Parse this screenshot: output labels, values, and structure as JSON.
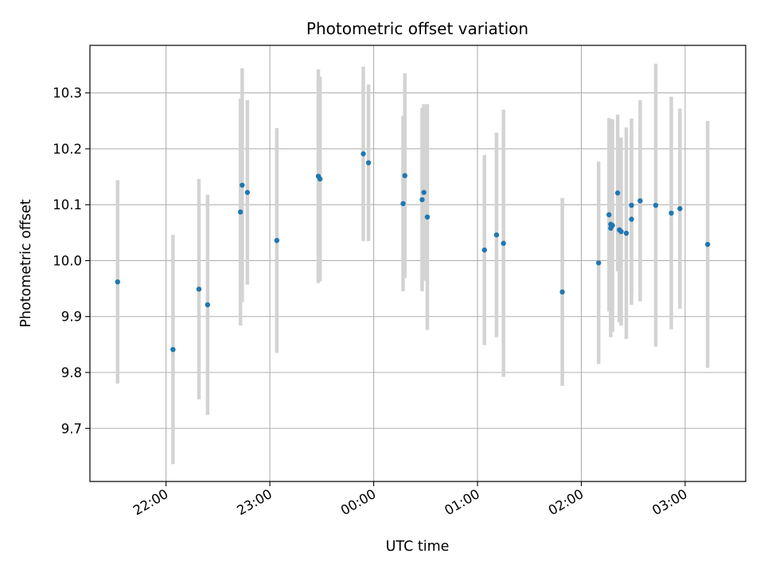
{
  "chart_data": {
    "type": "scatter",
    "title": "Photometric offset variation",
    "xlabel": "UTC time",
    "ylabel": "Photometric offset",
    "x_is_time": true,
    "xlim": [
      "21:16",
      "03:35"
    ],
    "ylim": [
      9.605,
      10.385
    ],
    "x_ticks": [
      "22:00",
      "23:00",
      "00:00",
      "01:00",
      "02:00",
      "03:00"
    ],
    "y_ticks": [
      9.7,
      9.8,
      9.9,
      10.0,
      10.1,
      10.2,
      10.3
    ],
    "grid": true,
    "colors": {
      "point": "#1f77b4",
      "errorbar": "#d3d3d3",
      "grid": "#b0b0b0"
    },
    "series": [
      {
        "points": [
          {
            "x": "21:32",
            "y": 9.962,
            "err": 0.182
          },
          {
            "x": "22:04",
            "y": 9.841,
            "err": 0.205
          },
          {
            "x": "22:19",
            "y": 9.949,
            "err": 0.197
          },
          {
            "x": "22:24",
            "y": 9.921,
            "err": 0.197
          },
          {
            "x": "22:43",
            "y": 10.087,
            "err": 0.203
          },
          {
            "x": "22:44",
            "y": 10.135,
            "err": 0.209
          },
          {
            "x": "22:47",
            "y": 10.122,
            "err": 0.165
          },
          {
            "x": "23:04",
            "y": 10.036,
            "err": 0.201
          },
          {
            "x": "23:28",
            "y": 10.151,
            "err": 0.191
          },
          {
            "x": "23:29",
            "y": 10.146,
            "err": 0.183
          },
          {
            "x": "23:54",
            "y": 10.191,
            "err": 0.156
          },
          {
            "x": "23:57",
            "y": 10.175,
            "err": 0.14
          },
          {
            "x": "00:17",
            "y": 10.102,
            "err": 0.157
          },
          {
            "x": "00:18",
            "y": 10.152,
            "err": 0.183
          },
          {
            "x": "00:28",
            "y": 10.109,
            "err": 0.164
          },
          {
            "x": "00:29",
            "y": 10.122,
            "err": 0.158
          },
          {
            "x": "00:31",
            "y": 10.078,
            "err": 0.202
          },
          {
            "x": "01:04",
            "y": 10.019,
            "err": 0.17
          },
          {
            "x": "01:11",
            "y": 10.046,
            "err": 0.183
          },
          {
            "x": "01:15",
            "y": 10.031,
            "err": 0.239
          },
          {
            "x": "01:49",
            "y": 9.944,
            "err": 0.168
          },
          {
            "x": "02:10",
            "y": 9.996,
            "err": 0.181
          },
          {
            "x": "02:16",
            "y": 10.082,
            "err": 0.173
          },
          {
            "x": "02:17",
            "y": 10.065,
            "err": 0.187
          },
          {
            "x": "02:17",
            "y": 10.058,
            "err": 0.195
          },
          {
            "x": "02:18",
            "y": 10.063,
            "err": 0.19
          },
          {
            "x": "02:21",
            "y": 10.121,
            "err": 0.14
          },
          {
            "x": "02:22",
            "y": 10.055,
            "err": 0.165
          },
          {
            "x": "02:23",
            "y": 10.052,
            "err": 0.168
          },
          {
            "x": "02:26",
            "y": 10.049,
            "err": 0.189
          },
          {
            "x": "02:29",
            "y": 10.074,
            "err": 0.153
          },
          {
            "x": "02:29",
            "y": 10.099,
            "err": 0.155
          },
          {
            "x": "02:34",
            "y": 10.107,
            "err": 0.18
          },
          {
            "x": "02:43",
            "y": 10.099,
            "err": 0.253
          },
          {
            "x": "02:52",
            "y": 10.085,
            "err": 0.208
          },
          {
            "x": "02:57",
            "y": 10.093,
            "err": 0.179
          },
          {
            "x": "03:13",
            "y": 10.029,
            "err": 0.221
          }
        ]
      }
    ]
  }
}
